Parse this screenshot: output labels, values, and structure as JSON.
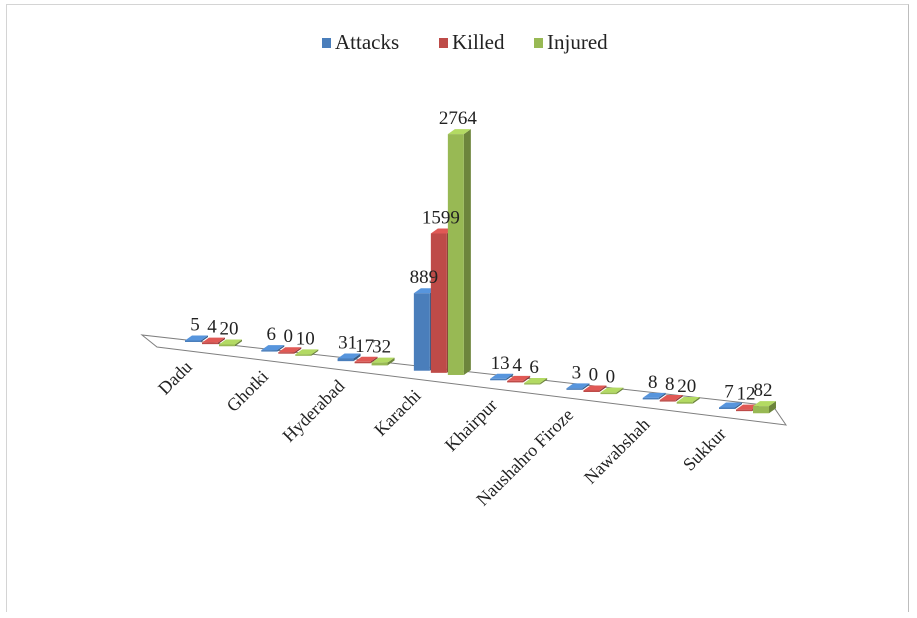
{
  "chart_data": {
    "type": "bar",
    "title": "",
    "xlabel": "",
    "ylabel": "",
    "categories": [
      "Dadu",
      "Ghotki",
      "Hyderabad",
      "Karachi",
      "Khairpur",
      "Naushahro Firoze",
      "Nawabshah",
      "Sukkur"
    ],
    "series": [
      {
        "name": "Attacks",
        "color": "#4a7ebb",
        "values": [
          5,
          6,
          31,
          889,
          13,
          3,
          8,
          7
        ]
      },
      {
        "name": "Killed",
        "color": "#be4b48",
        "values": [
          4,
          0,
          17,
          1599,
          4,
          0,
          8,
          12
        ]
      },
      {
        "name": "Injured",
        "color": "#98b954",
        "values": [
          20,
          10,
          32,
          2764,
          6,
          0,
          20,
          82
        ]
      }
    ],
    "ylim": [
      0,
      2800
    ],
    "grid": false,
    "legend": "top",
    "style": "3d-perspective-columns"
  }
}
